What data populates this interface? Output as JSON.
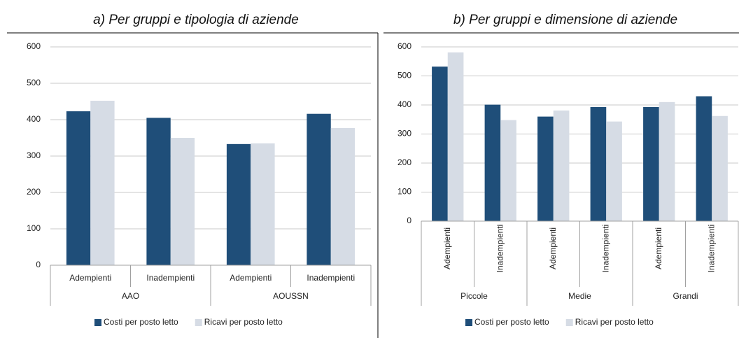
{
  "chart_data": [
    {
      "type": "bar",
      "title": "a) Per gruppi e tipologia di aziende",
      "categories": [
        "Adempienti",
        "Inadempienti",
        "Adempienti",
        "Inadempienti"
      ],
      "groups": [
        "AAO",
        "AOUSSN"
      ],
      "series": [
        {
          "name": "Costi per posto letto",
          "color": "#1f4e79",
          "values": [
            423,
            405,
            333,
            416
          ]
        },
        {
          "name": "Ricavi per posto letto",
          "color": "#d6dce5",
          "values": [
            452,
            350,
            335,
            377
          ]
        }
      ],
      "ylim": [
        0,
        600
      ],
      "yticks": [
        0,
        100,
        200,
        300,
        400,
        500,
        600
      ],
      "grid": true,
      "legend": "bottom"
    },
    {
      "type": "bar",
      "title": "b) Per gruppi e dimensione di aziende",
      "categories": [
        "Adempienti",
        "Inadempienti",
        "Adempienti",
        "Inadempienti",
        "Adempienti",
        "Inadempienti"
      ],
      "groups": [
        "Piccole",
        "Medie",
        "Grandi"
      ],
      "series": [
        {
          "name": "Costi per posto letto",
          "color": "#1f4e79",
          "values": [
            532,
            401,
            360,
            393,
            393,
            430
          ]
        },
        {
          "name": "Ricavi per posto letto",
          "color": "#d6dce5",
          "values": [
            581,
            348,
            381,
            343,
            410,
            362
          ]
        }
      ],
      "ylim": [
        0,
        600
      ],
      "yticks": [
        0,
        100,
        200,
        300,
        400,
        500,
        600
      ],
      "grid": true,
      "legend": "bottom"
    }
  ]
}
